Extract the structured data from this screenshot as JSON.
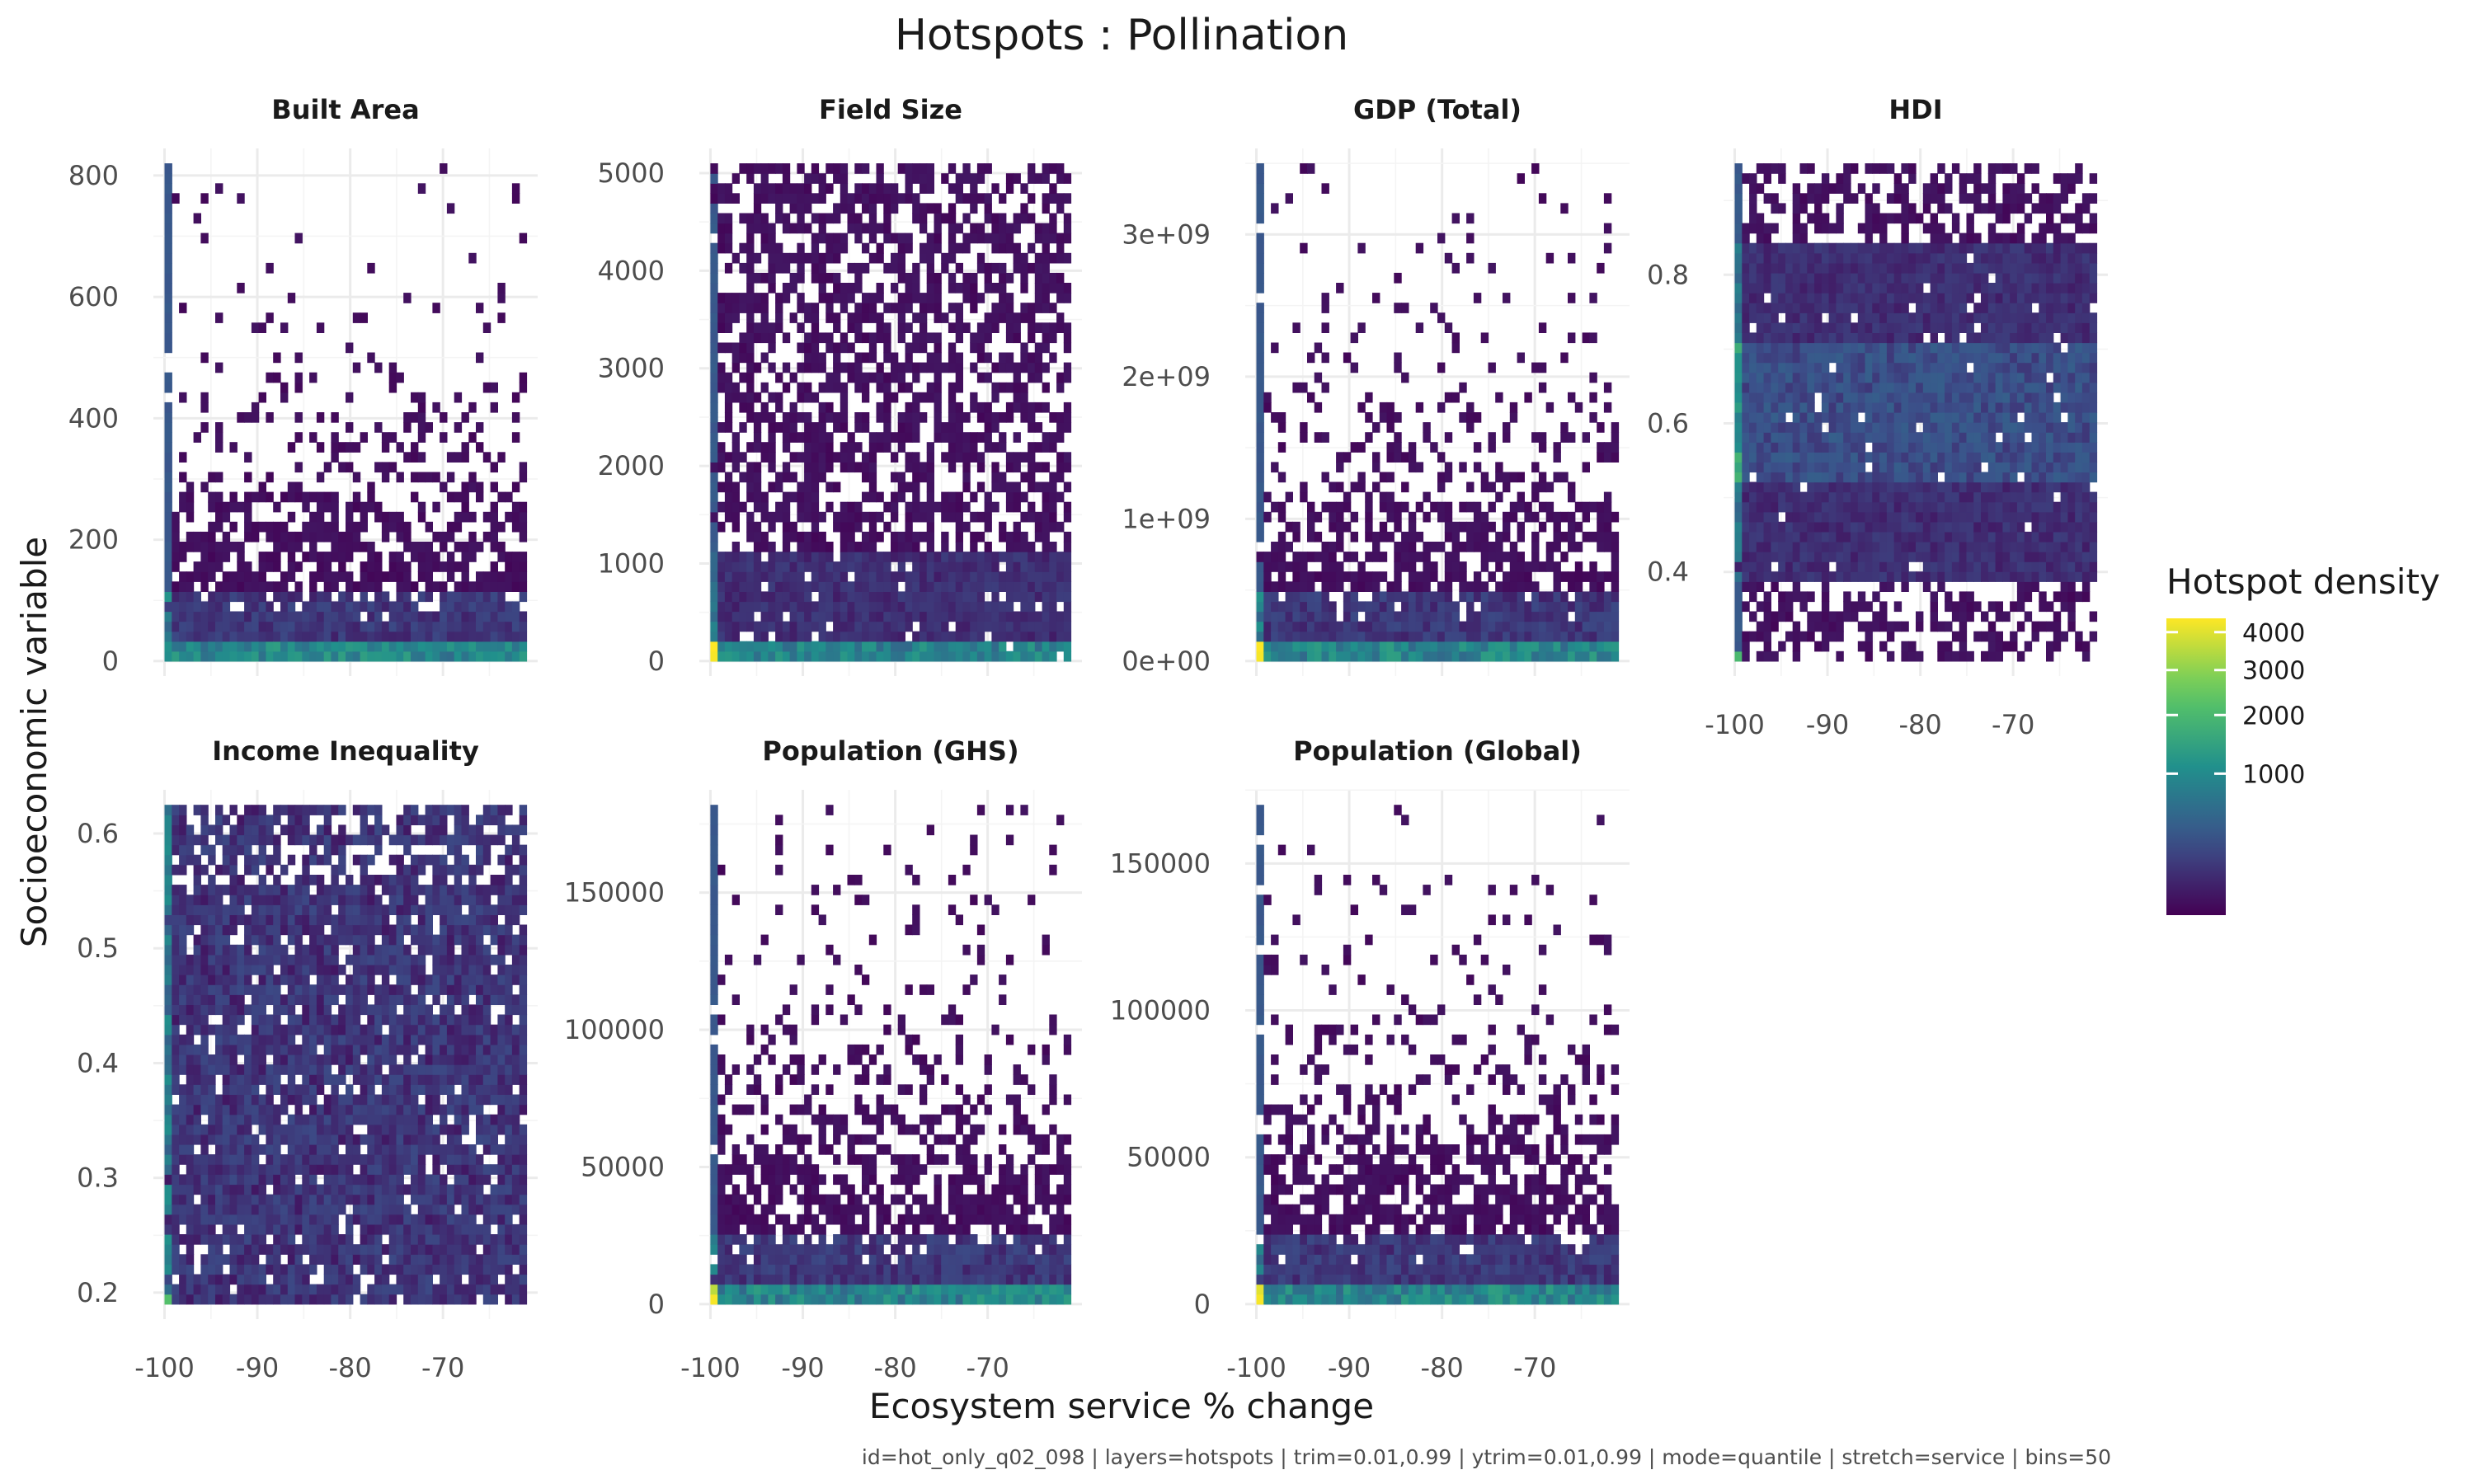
{
  "chart_data": {
    "type": "heatmap",
    "title": "Hotspots : Pollination",
    "xlabel": "Ecosystem service % change",
    "ylabel": "Socioeconomic variable",
    "caption": "id=hot_only_q02_098 | layers=hotspots | trim=0.01,0.99 | ytrim=0.01,0.99 | mode=quantile | stretch=service | bins=50",
    "grid": true,
    "legend": {
      "title": "Hotspot density",
      "placement": "right",
      "ticks": [
        1000,
        2000,
        3000,
        4000
      ],
      "tick_labels": [
        "1000",
        "2000",
        "3000",
        "4000"
      ],
      "min": 1,
      "max": 4400,
      "colors": [
        "#440154",
        "#3b528b",
        "#21908c",
        "#5dc963",
        "#fde725"
      ]
    },
    "x_axis": {
      "range": [
        -100,
        -61
      ],
      "ticks": [
        -100,
        -90,
        -80,
        -70
      ],
      "tick_labels": [
        "-100",
        "-90",
        "-80",
        "-70"
      ]
    },
    "bins": 50,
    "panels": [
      {
        "name": "Built Area",
        "ylim": [
          0,
          820
        ],
        "y_ticks": [
          0,
          200,
          400,
          600,
          800
        ],
        "y_tick_labels": [
          "0",
          "200",
          "400",
          "600",
          "800"
        ],
        "density": "low-skew",
        "hot_max": 4000
      },
      {
        "name": "Field Size",
        "ylim": [
          0,
          5100
        ],
        "y_ticks": [
          0,
          1000,
          2000,
          3000,
          4000,
          5000
        ],
        "y_tick_labels": [
          "0",
          "1000",
          "2000",
          "3000",
          "4000",
          "5000"
        ],
        "density": "uniform-upper",
        "hot_max": 4300
      },
      {
        "name": "GDP (Total)",
        "ylim": [
          0,
          3500000000
        ],
        "y_ticks": [
          0,
          1000000000,
          2000000000,
          3000000000
        ],
        "y_tick_labels": [
          "0e+00",
          "1e+09",
          "2e+09",
          "3e+09"
        ],
        "density": "low-skew",
        "hot_max": 4300
      },
      {
        "name": "HDI",
        "ylim": [
          0.28,
          0.95
        ],
        "y_ticks": [
          0.4,
          0.6,
          0.8
        ],
        "y_tick_labels": [
          "0.4",
          "0.6",
          "0.8"
        ],
        "density": "central",
        "hot_max": 2000
      },
      {
        "name": "Income Inequality",
        "ylim": [
          0.19,
          0.625
        ],
        "y_ticks": [
          0.2,
          0.3,
          0.4,
          0.5,
          0.6
        ],
        "y_tick_labels": [
          "0.2",
          "0.3",
          "0.4",
          "0.5",
          "0.6"
        ],
        "density": "broad",
        "hot_max": 2200
      },
      {
        "name": "Population (GHS)",
        "ylim": [
          0,
          182000
        ],
        "y_ticks": [
          0,
          50000,
          100000,
          150000
        ],
        "y_tick_labels": [
          "0",
          "50000",
          "100000",
          "150000"
        ],
        "density": "low-skew",
        "hot_max": 4300
      },
      {
        "name": "Population (Global)",
        "ylim": [
          0,
          170000
        ],
        "y_ticks": [
          0,
          50000,
          100000,
          150000
        ],
        "y_tick_labels": [
          "0",
          "50000",
          "100000",
          "150000"
        ],
        "density": "low-skew",
        "hot_max": 4300
      }
    ]
  }
}
